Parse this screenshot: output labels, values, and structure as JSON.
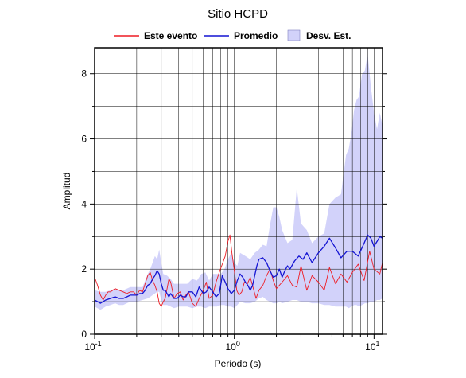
{
  "chart_data": {
    "type": "line",
    "title": "Sitio HCPD",
    "xlabel": "Periodo (s)",
    "ylabel": "Amplitud",
    "xscale": "log",
    "xlim": [
      0.1,
      11.5
    ],
    "ylim": [
      0,
      8.8
    ],
    "x_ticks": [
      {
        "value": 0.1,
        "base": "10",
        "exp": "-1"
      },
      {
        "value": 1,
        "base": "10",
        "exp": "0"
      },
      {
        "value": 10,
        "base": "10",
        "exp": "1"
      }
    ],
    "y_ticks": [
      0,
      2,
      4,
      6,
      8
    ],
    "grid": true,
    "legend": {
      "placement": "top",
      "entries": [
        {
          "label": "Este evento",
          "kind": "line",
          "color": "#ee1c24"
        },
        {
          "label": "Promedio",
          "kind": "line",
          "color": "#1414d2"
        },
        {
          "label": "Desv. Est.",
          "kind": "band",
          "color": "#d2d2fa"
        }
      ]
    },
    "series": [
      {
        "name": "Este evento",
        "color": "#ee1c24",
        "x": [
          0.1,
          0.105,
          0.11,
          0.115,
          0.12,
          0.125,
          0.13,
          0.14,
          0.15,
          0.16,
          0.17,
          0.18,
          0.19,
          0.2,
          0.21,
          0.22,
          0.23,
          0.24,
          0.25,
          0.26,
          0.27,
          0.28,
          0.29,
          0.3,
          0.31,
          0.32,
          0.33,
          0.34,
          0.35,
          0.37,
          0.39,
          0.41,
          0.43,
          0.45,
          0.47,
          0.5,
          0.53,
          0.56,
          0.6,
          0.63,
          0.66,
          0.7,
          0.74,
          0.78,
          0.82,
          0.86,
          0.9,
          0.93,
          0.96,
          1.0,
          1.04,
          1.08,
          1.13,
          1.18,
          1.24,
          1.3,
          1.36,
          1.43,
          1.5,
          1.6,
          1.7,
          1.8,
          1.9,
          2.0,
          2.2,
          2.4,
          2.6,
          2.8,
          3.0,
          3.3,
          3.6,
          4.0,
          4.4,
          4.8,
          5.3,
          5.8,
          6.4,
          7.0,
          7.7,
          8.5,
          9.3,
          10.0,
          11.0,
          11.5
        ],
        "values": [
          1.75,
          1.5,
          1.2,
          1.05,
          1.2,
          1.3,
          1.3,
          1.4,
          1.35,
          1.3,
          1.25,
          1.3,
          1.3,
          1.2,
          1.35,
          1.3,
          1.55,
          1.8,
          1.9,
          1.65,
          1.5,
          1.3,
          0.95,
          0.85,
          1.0,
          1.1,
          1.4,
          1.7,
          1.6,
          1.1,
          1.25,
          1.3,
          1.05,
          1.2,
          1.3,
          0.95,
          0.85,
          1.1,
          1.35,
          1.6,
          1.1,
          1.2,
          1.6,
          1.9,
          2.15,
          2.4,
          2.85,
          3.05,
          2.5,
          1.95,
          1.35,
          1.2,
          1.3,
          1.6,
          1.55,
          1.75,
          1.45,
          1.1,
          1.35,
          1.5,
          1.8,
          2.0,
          1.65,
          1.4,
          1.6,
          1.8,
          1.5,
          1.45,
          2.1,
          1.35,
          1.8,
          1.6,
          1.35,
          2.05,
          1.55,
          1.85,
          1.6,
          1.9,
          2.15,
          1.65,
          2.55,
          2.0,
          1.85,
          2.2
        ]
      },
      {
        "name": "Promedio",
        "color": "#1414d2",
        "x": [
          0.1,
          0.11,
          0.12,
          0.13,
          0.14,
          0.15,
          0.16,
          0.17,
          0.18,
          0.19,
          0.2,
          0.21,
          0.22,
          0.23,
          0.24,
          0.25,
          0.26,
          0.27,
          0.28,
          0.29,
          0.3,
          0.31,
          0.32,
          0.33,
          0.34,
          0.35,
          0.37,
          0.39,
          0.41,
          0.43,
          0.45,
          0.47,
          0.5,
          0.53,
          0.56,
          0.6,
          0.63,
          0.66,
          0.7,
          0.74,
          0.78,
          0.82,
          0.86,
          0.9,
          0.95,
          1.0,
          1.05,
          1.1,
          1.15,
          1.2,
          1.25,
          1.3,
          1.35,
          1.4,
          1.45,
          1.5,
          1.6,
          1.7,
          1.8,
          1.9,
          2.0,
          2.1,
          2.2,
          2.3,
          2.4,
          2.5,
          2.7,
          2.9,
          3.1,
          3.3,
          3.6,
          4.0,
          4.4,
          4.8,
          5.3,
          5.8,
          6.4,
          7.0,
          7.7,
          8.5,
          9.0,
          9.5,
          10.0,
          10.5,
          11.0,
          11.5
        ],
        "values": [
          1.05,
          0.95,
          1.05,
          1.1,
          1.15,
          1.1,
          1.1,
          1.15,
          1.2,
          1.2,
          1.2,
          1.25,
          1.25,
          1.35,
          1.5,
          1.55,
          1.7,
          1.8,
          1.95,
          1.85,
          1.55,
          1.35,
          1.35,
          1.25,
          1.15,
          1.25,
          1.1,
          1.1,
          1.2,
          1.15,
          1.15,
          1.3,
          1.3,
          1.15,
          1.45,
          1.25,
          1.3,
          1.45,
          1.3,
          1.15,
          1.25,
          1.8,
          1.6,
          1.4,
          1.25,
          1.35,
          1.65,
          1.85,
          1.75,
          1.6,
          1.5,
          1.35,
          1.5,
          1.8,
          2.1,
          2.3,
          2.35,
          2.2,
          1.95,
          1.75,
          1.8,
          2.0,
          1.75,
          1.95,
          2.1,
          2.0,
          2.25,
          2.4,
          2.3,
          2.5,
          2.2,
          2.5,
          2.7,
          2.95,
          2.65,
          2.35,
          2.55,
          2.55,
          2.4,
          2.8,
          3.05,
          2.95,
          2.7,
          2.85,
          3.0,
          2.95
        ]
      }
    ],
    "band": {
      "name": "Desv. Est.",
      "color": "#d2d2fa",
      "x": [
        0.1,
        0.11,
        0.12,
        0.13,
        0.14,
        0.15,
        0.16,
        0.17,
        0.18,
        0.19,
        0.2,
        0.22,
        0.24,
        0.25,
        0.26,
        0.27,
        0.28,
        0.29,
        0.3,
        0.31,
        0.33,
        0.35,
        0.37,
        0.4,
        0.43,
        0.46,
        0.5,
        0.54,
        0.58,
        0.62,
        0.66,
        0.7,
        0.75,
        0.8,
        0.85,
        0.9,
        0.95,
        1.0,
        1.05,
        1.1,
        1.2,
        1.3,
        1.4,
        1.5,
        1.6,
        1.7,
        1.8,
        1.9,
        2.0,
        2.1,
        2.2,
        2.4,
        2.6,
        2.8,
        3.0,
        3.3,
        3.6,
        4.0,
        4.4,
        4.8,
        5.3,
        5.8,
        6.3,
        6.6,
        6.9,
        7.2,
        7.5,
        7.8,
        8.2,
        8.6,
        9.0,
        9.5,
        10.0,
        10.5,
        11.0,
        11.5
      ],
      "lower": [
        0.85,
        0.75,
        0.85,
        0.9,
        0.95,
        0.9,
        0.9,
        0.95,
        1.0,
        1.0,
        1.0,
        1.05,
        1.1,
        1.15,
        1.2,
        1.25,
        1.3,
        1.3,
        1.05,
        0.9,
        0.9,
        0.85,
        0.8,
        0.85,
        0.85,
        0.85,
        0.8,
        0.85,
        0.85,
        0.8,
        0.85,
        0.85,
        0.85,
        0.9,
        0.9,
        0.85,
        0.85,
        0.8,
        0.9,
        1.0,
        0.95,
        0.95,
        1.0,
        1.1,
        1.15,
        1.05,
        1.0,
        0.95,
        0.95,
        1.0,
        0.95,
        1.0,
        1.05,
        1.05,
        1.0,
        1.0,
        0.95,
        0.95,
        0.9,
        0.9,
        0.85,
        0.85,
        0.85,
        0.8,
        0.85,
        0.9,
        0.9,
        0.85,
        0.9,
        0.95,
        0.95,
        1.0,
        1.0,
        1.05,
        1.05,
        1.1
      ],
      "upper": [
        1.35,
        1.3,
        1.3,
        1.35,
        1.4,
        1.35,
        1.35,
        1.4,
        1.45,
        1.45,
        1.45,
        1.45,
        1.85,
        2.0,
        2.2,
        2.4,
        2.3,
        2.6,
        2.2,
        1.85,
        1.8,
        1.7,
        1.55,
        1.55,
        1.55,
        1.55,
        1.7,
        1.65,
        1.85,
        1.9,
        1.65,
        1.85,
        1.85,
        1.85,
        2.0,
        2.3,
        2.5,
        2.2,
        2.1,
        2.5,
        2.4,
        2.3,
        2.5,
        2.6,
        2.75,
        2.7,
        3.35,
        3.9,
        3.9,
        3.6,
        3.2,
        2.8,
        2.9,
        4.5,
        3.4,
        3.2,
        2.8,
        3.0,
        3.1,
        4.0,
        4.2,
        4.3,
        5.5,
        5.7,
        6.2,
        6.9,
        7.2,
        7.3,
        8.0,
        8.1,
        8.6,
        7.6,
        6.8,
        6.3,
        6.8,
        6.4
      ]
    }
  }
}
